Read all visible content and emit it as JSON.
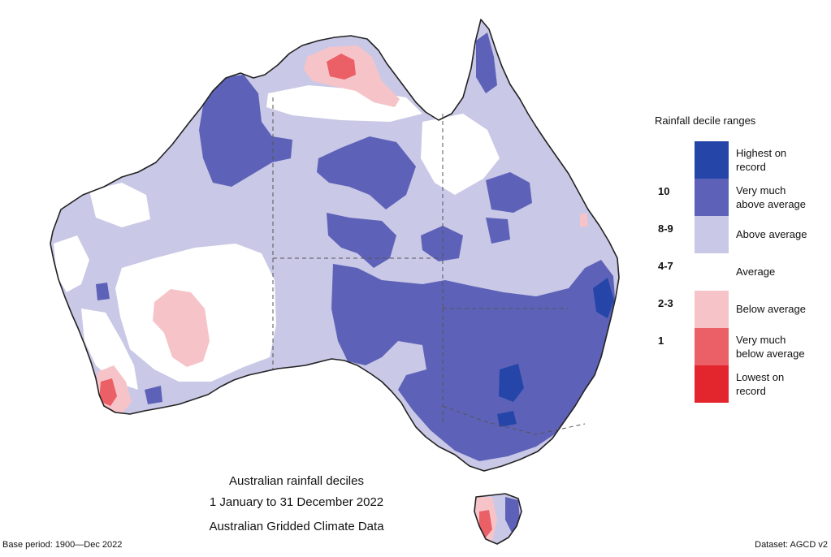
{
  "legend": {
    "title": "Rainfall decile ranges",
    "rows": [
      {
        "decile": "",
        "label_line1": "Highest on",
        "label_line2": "record",
        "color": "#2546a8"
      },
      {
        "decile": "10",
        "label_line1": "Very much",
        "label_line2": "above average",
        "color": "#5d62b8"
      },
      {
        "decile": "8-9",
        "label_line1": "Above average",
        "label_line2": "",
        "color": "#c9c8e6"
      },
      {
        "decile": "4-7",
        "label_line1": "Average",
        "label_line2": "",
        "color": "#ffffff"
      },
      {
        "decile": "2-3",
        "label_line1": "Below average",
        "label_line2": "",
        "color": "#f6c4c8"
      },
      {
        "decile": "1",
        "label_line1": "Very much",
        "label_line2": "below average",
        "color": "#eb5f66"
      },
      {
        "decile": "",
        "label_line1": "Lowest on",
        "label_line2": "record",
        "color": "#e3262d"
      }
    ]
  },
  "caption": {
    "line1": "Australian rainfall deciles",
    "line2": "1 January to 31 December 2022",
    "line3": "Australian Gridded Climate Data"
  },
  "footer": {
    "base_period": "Base period: 1900—Dec 2022",
    "dataset": "Dataset: AGCD v2"
  }
}
